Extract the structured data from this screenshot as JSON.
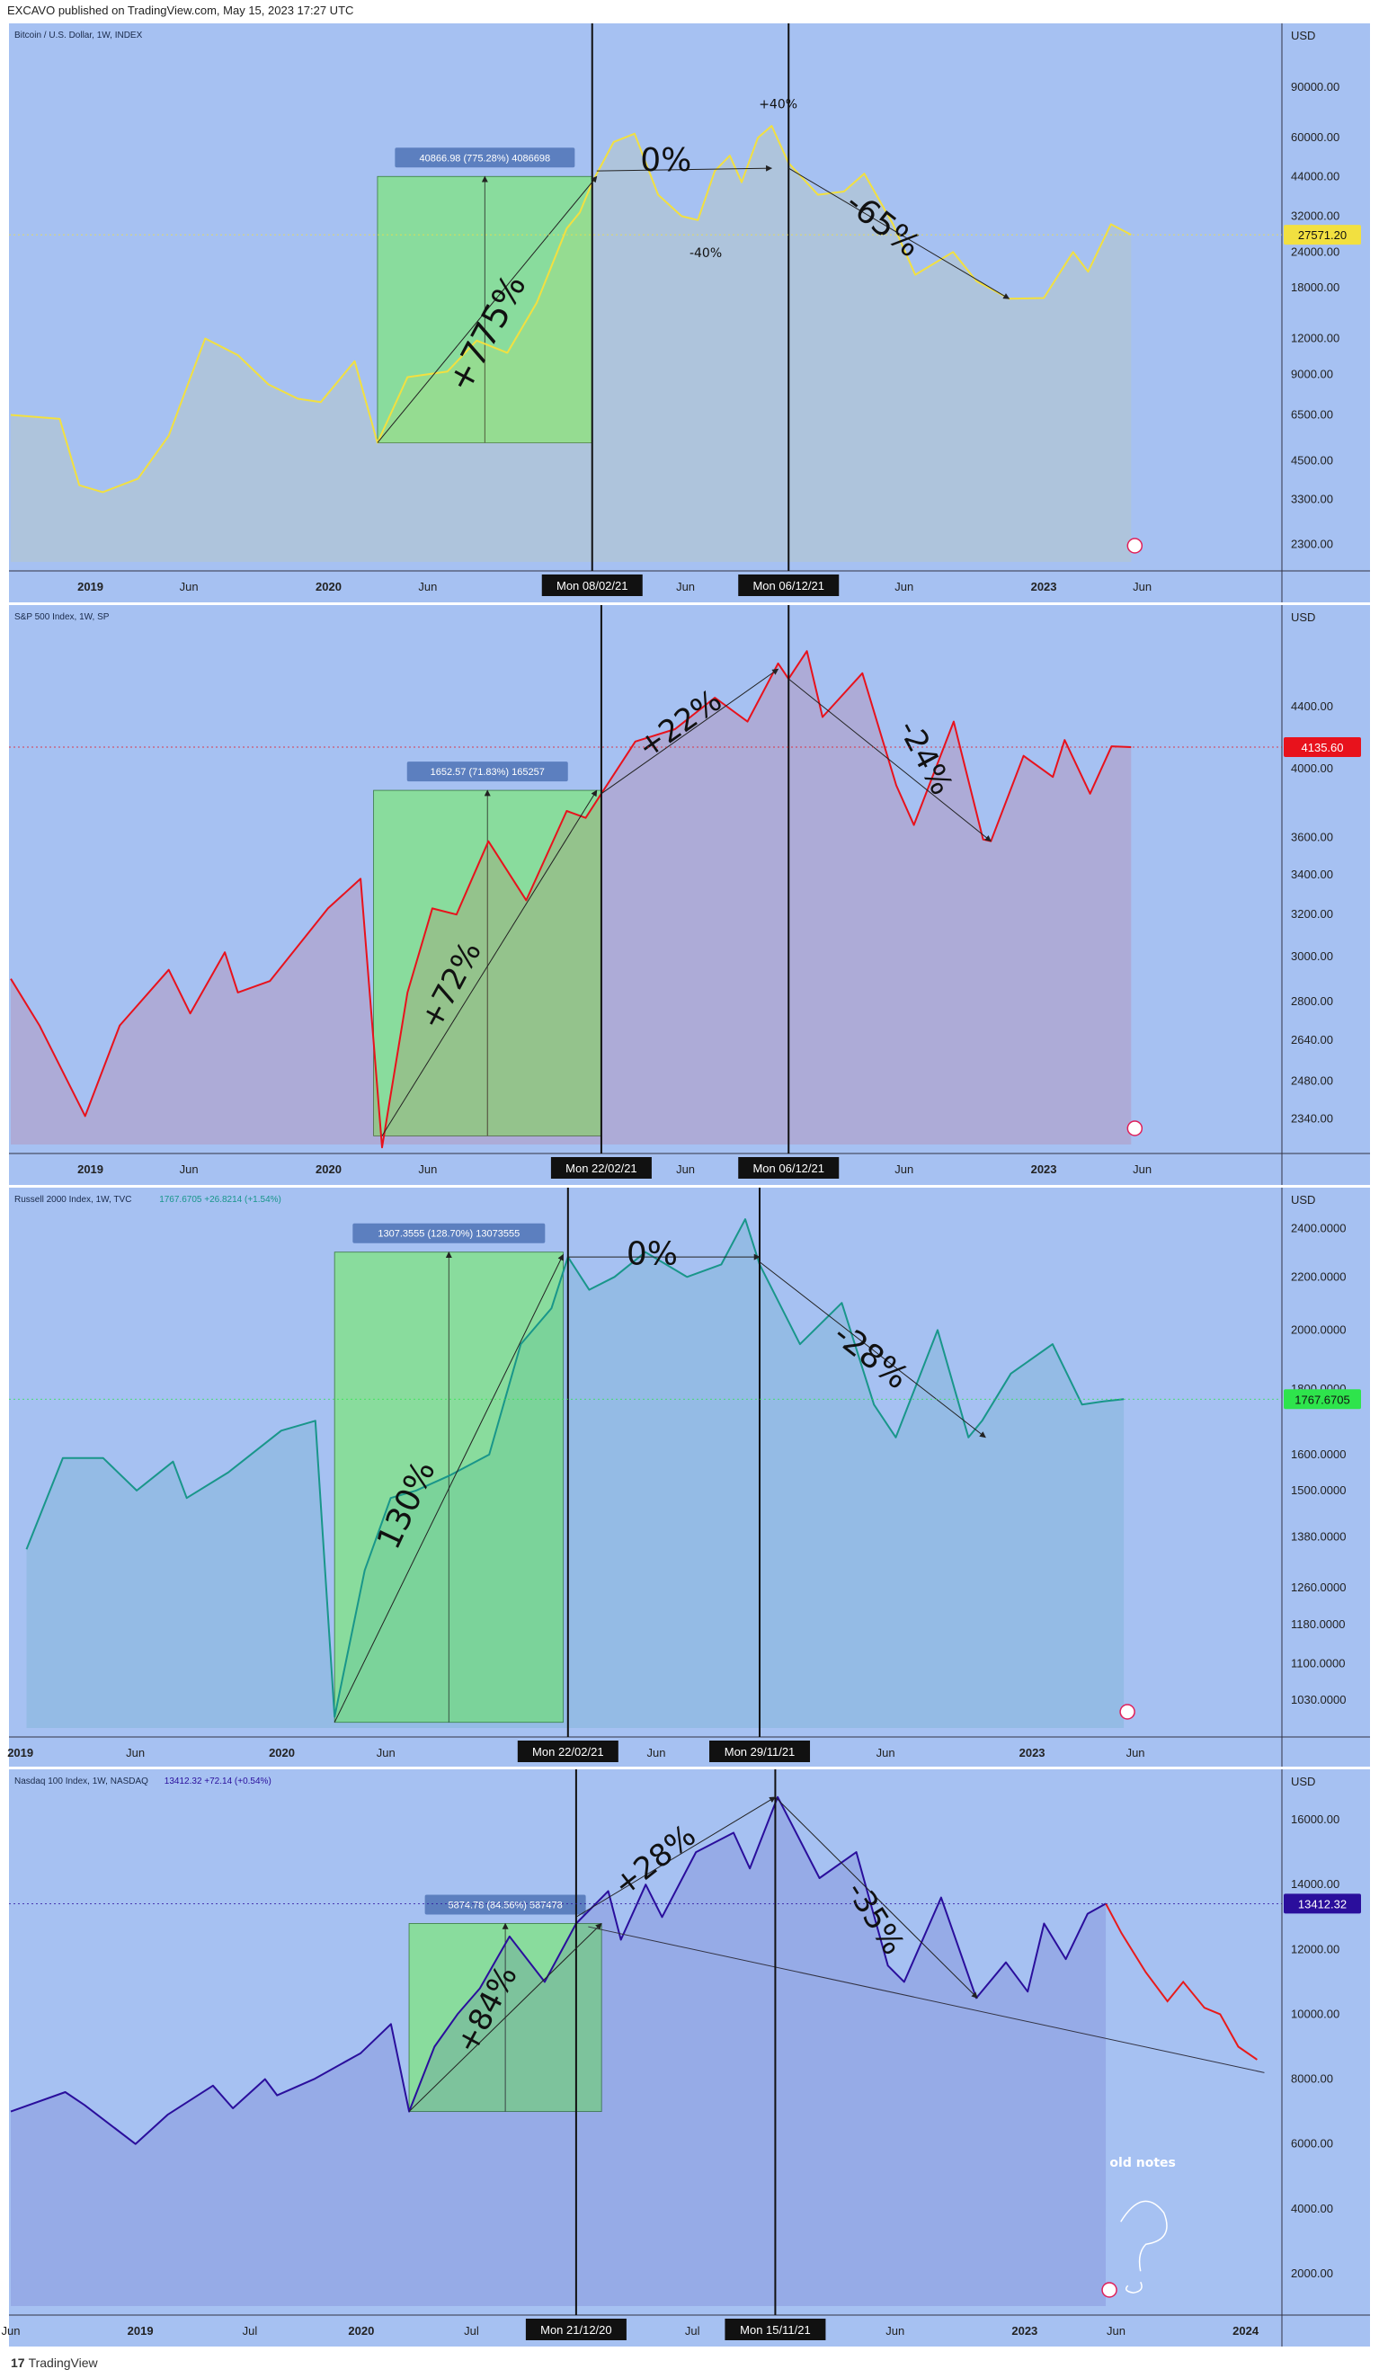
{
  "header": {
    "published": "EXCAVO published on TradingView.com, May 15, 2023 17:27 UTC"
  },
  "footer": {
    "brand": "TradingView",
    "logo": "17"
  },
  "colors": {
    "panel_bg": "#a6c1f2",
    "green_box": "#84e08e",
    "vline": "#111111"
  },
  "chart_data": [
    {
      "type": "line",
      "title": "Bitcoin / U.S. Dollar, 1W, INDEX",
      "ylabel": "USD",
      "yscale": "log",
      "ylim": [
        2000,
        130000
      ],
      "line_color": "#f2e040",
      "x_tick_labels": [
        "2019",
        "Jun",
        "2020",
        "Jun",
        "Mon 08/02/21",
        "Jun",
        "Mon 06/12/21",
        "Jun",
        "2023",
        "Jun"
      ],
      "y_tick_labels": [
        "90000.00",
        "60000.00",
        "44000.00",
        "32000.00",
        "24000.00",
        "18000.00",
        "12000.00",
        "9000.00",
        "6500.00",
        "4500.00",
        "3300.00",
        "2300.00"
      ],
      "last_value": "27571.20",
      "last_value_color": "#f2e040",
      "x": [
        "2018-09-01",
        "2018-11-15",
        "2018-12-15",
        "2019-01-20",
        "2019-03-15",
        "2019-05-01",
        "2019-06-01",
        "2019-06-26",
        "2019-08-15",
        "2019-10-01",
        "2019-11-15",
        "2019-12-20",
        "2020-02-10",
        "2020-03-16",
        "2020-05-01",
        "2020-07-01",
        "2020-08-15",
        "2020-10-01",
        "2020-11-15",
        "2020-12-31",
        "2021-01-20",
        "2021-02-08",
        "2021-03-13",
        "2021-04-14",
        "2021-05-20",
        "2021-06-25",
        "2021-07-20",
        "2021-08-15",
        "2021-09-07",
        "2021-09-25",
        "2021-10-20",
        "2021-11-10",
        "2021-12-06",
        "2022-01-20",
        "2022-03-01",
        "2022-04-01",
        "2022-05-15",
        "2022-06-18",
        "2022-08-15",
        "2022-09-20",
        "2022-11-09",
        "2023-01-01",
        "2023-02-15",
        "2023-03-10",
        "2023-04-14",
        "2023-05-15"
      ],
      "values": [
        6500,
        6300,
        3700,
        3500,
        3900,
        5500,
        8500,
        12000,
        10500,
        8300,
        7400,
        7200,
        10000,
        5200,
        8800,
        9200,
        11800,
        10700,
        16000,
        29000,
        33000,
        42000,
        58000,
        62000,
        38000,
        32000,
        31000,
        46000,
        52000,
        42000,
        60000,
        66000,
        49000,
        38000,
        39000,
        45000,
        30000,
        20000,
        24000,
        19000,
        16500,
        16600,
        24000,
        20500,
        30000,
        27571
      ]
    },
    {
      "type": "line",
      "title": "S&P 500 Index, 1W, SP",
      "ylabel": "USD",
      "yscale": "log",
      "ylim": [
        2250,
        5000
      ],
      "line_color": "#e8121c",
      "x_tick_labels": [
        "2019",
        "Jun",
        "2020",
        "Jun",
        "Mon 22/02/21",
        "Jun",
        "Mon 06/12/21",
        "Jun",
        "2023",
        "Jun"
      ],
      "y_tick_labels": [
        "4400.00",
        "4000.00",
        "3600.00",
        "3400.00",
        "3200.00",
        "3000.00",
        "2800.00",
        "2640.00",
        "2480.00",
        "2340.00"
      ],
      "last_value": "4135.60",
      "last_value_color": "#e8121c",
      "x": [
        "2018-09-01",
        "2018-10-15",
        "2018-12-24",
        "2019-02-15",
        "2019-05-01",
        "2019-06-03",
        "2019-07-26",
        "2019-08-15",
        "2019-10-03",
        "2019-12-31",
        "2020-02-19",
        "2020-03-23",
        "2020-05-01",
        "2020-06-08",
        "2020-07-15",
        "2020-09-02",
        "2020-10-30",
        "2020-12-31",
        "2021-01-29",
        "2021-02-22",
        "2021-04-15",
        "2021-06-15",
        "2021-08-15",
        "2021-10-04",
        "2021-11-20",
        "2021-12-06",
        "2022-01-03",
        "2022-01-27",
        "2022-03-29",
        "2022-05-20",
        "2022-06-16",
        "2022-08-16",
        "2022-09-30",
        "2022-10-12",
        "2022-12-01",
        "2023-01-15",
        "2023-02-02",
        "2023-03-13",
        "2023-04-15",
        "2023-05-15"
      ],
      "values": [
        2900,
        2700,
        2350,
        2700,
        2940,
        2750,
        3020,
        2840,
        2890,
        3230,
        3380,
        2240,
        2840,
        3230,
        3200,
        3580,
        3270,
        3750,
        3710,
        3850,
        4170,
        4250,
        4460,
        4300,
        4700,
        4590,
        4790,
        4330,
        4630,
        3900,
        3670,
        4300,
        3590,
        3580,
        4080,
        3950,
        4180,
        3850,
        4140,
        4135
      ]
    },
    {
      "type": "line",
      "title": "Russell 2000 Index, 1W, TVC",
      "subtitle": "1767.6705  +26.8214 (+1.54%)",
      "ylabel": "USD",
      "yscale": "log",
      "ylim": [
        980,
        2500
      ],
      "line_color": "#19968a",
      "x_tick_labels": [
        "2019",
        "Jun",
        "2020",
        "Jun",
        "Mon 22/02/21",
        "Jun",
        "Mon 29/11/21",
        "Jun",
        "2023",
        "Jun"
      ],
      "y_tick_labels": [
        "2400.0000",
        "2200.0000",
        "2000.0000",
        "1800.0000",
        "1600.0000",
        "1500.0000",
        "1380.0000",
        "1260.0000",
        "1180.0000",
        "1100.0000",
        "1030.0000"
      ],
      "last_value": "1767.6705",
      "last_value_color": "#2ee44c",
      "x": [
        "2018-12-24",
        "2019-02-15",
        "2019-04-15",
        "2019-06-03",
        "2019-07-26",
        "2019-08-15",
        "2019-10-15",
        "2019-12-31",
        "2020-02-19",
        "2020-03-18",
        "2020-05-01",
        "2020-06-08",
        "2020-07-15",
        "2020-09-01",
        "2020-10-30",
        "2020-12-15",
        "2021-01-29",
        "2021-02-22",
        "2021-03-25",
        "2021-05-01",
        "2021-06-15",
        "2021-08-15",
        "2021-10-04",
        "2021-11-08",
        "2021-11-29",
        "2022-01-27",
        "2022-03-29",
        "2022-05-15",
        "2022-06-16",
        "2022-08-16",
        "2022-09-30",
        "2022-10-20",
        "2022-12-01",
        "2023-01-31",
        "2023-03-15",
        "2023-04-15",
        "2023-05-15"
      ],
      "values": [
        1350,
        1590,
        1590,
        1500,
        1580,
        1480,
        1550,
        1670,
        1700,
        1000,
        1300,
        1480,
        1500,
        1540,
        1600,
        1950,
        2080,
        2280,
        2150,
        2200,
        2300,
        2200,
        2250,
        2440,
        2250,
        1950,
        2100,
        1750,
        1650,
        2000,
        1650,
        1700,
        1850,
        1950,
        1750,
        1760,
        1767
      ]
    },
    {
      "type": "line",
      "title": "Nasdaq 100 Index, 1W, NASDAQ",
      "subtitle": "13412.32  +72.14 (+0.54%)",
      "ylabel": "USD",
      "ylim": [
        1000,
        17000
      ],
      "line_color": "#2a0e9c",
      "x_tick_labels": [
        "Jun",
        "2019",
        "Jul",
        "2020",
        "Jul",
        "Mon 21/12/20",
        "Jul",
        "Mon 15/11/21",
        "Jun",
        "2023",
        "Jun",
        "2024"
      ],
      "y_tick_labels": [
        "16000.00",
        "14000.00",
        "12000.00",
        "10000.00",
        "8000.00",
        "6000.00",
        "4000.00",
        "2000.00"
      ],
      "last_value": "13412.32",
      "last_value_color": "#2a0e9c",
      "x": [
        "2018-06-01",
        "2018-08-30",
        "2018-10-01",
        "2018-12-24",
        "2019-02-15",
        "2019-05-01",
        "2019-06-03",
        "2019-07-26",
        "2019-08-15",
        "2019-10-15",
        "2019-12-31",
        "2020-02-19",
        "2020-03-20",
        "2020-05-01",
        "2020-06-08",
        "2020-07-15",
        "2020-09-02",
        "2020-10-30",
        "2020-12-21",
        "2021-02-12",
        "2021-03-05",
        "2021-04-15",
        "2021-05-12",
        "2021-07-07",
        "2021-09-07",
        "2021-10-04",
        "2021-11-19",
        "2022-01-27",
        "2022-03-29",
        "2022-05-20",
        "2022-06-16",
        "2022-08-16",
        "2022-10-13",
        "2022-12-01",
        "2023-01-06",
        "2023-02-02",
        "2023-03-10",
        "2023-04-15",
        "2023-05-15"
      ],
      "values": [
        7000,
        7600,
        7200,
        6000,
        6900,
        7800,
        7100,
        8000,
        7500,
        8000,
        8800,
        9700,
        7000,
        9000,
        10000,
        10800,
        12400,
        11000,
        12800,
        13800,
        12300,
        14000,
        13000,
        15000,
        15600,
        14500,
        16700,
        14200,
        15000,
        11500,
        11000,
        13600,
        10500,
        11600,
        10700,
        12800,
        11700,
        13100,
        13412
      ]
    }
  ],
  "annotations": [
    {
      "box_label": "40866.98 (775.28%) 4086698",
      "labels": [
        "+775%",
        "0%",
        "-65%",
        "+40%",
        "-40%"
      ]
    },
    {
      "box_label": "1652.57 (71.83%) 165257",
      "labels": [
        "+72%",
        "+22%",
        "-24%"
      ]
    },
    {
      "box_label": "1307.3555 (128.70%) 13073555",
      "labels": [
        "130%",
        "0%",
        "-28%"
      ]
    },
    {
      "box_label": "5874.78 (84.56%) 587478",
      "labels": [
        "+84%",
        "+28%",
        "-35%",
        "old notes"
      ]
    }
  ]
}
